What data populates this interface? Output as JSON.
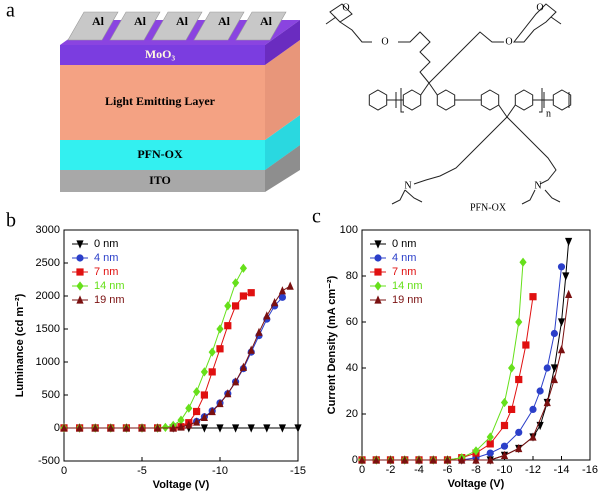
{
  "panel_labels": [
    "a",
    "b",
    "c"
  ],
  "device": {
    "electrodes": [
      "Al",
      "Al",
      "Al",
      "Al",
      "Al"
    ],
    "layers": [
      "MoO₃",
      "Light Emitting Layer",
      "PFN-OX",
      "ITO"
    ]
  },
  "structure": {
    "oxygen_labels": [
      "O",
      "O",
      "O",
      "O"
    ],
    "nitrogen_labels": [
      "N",
      "N"
    ],
    "repeat_label": "n",
    "name": "PFN-OX"
  },
  "chart_data": [
    {
      "type": "line",
      "xlabel": "Voltage (V)",
      "ylabel": "Luminance (cd m⁻²)",
      "xlim": [
        0,
        -15
      ],
      "xticks": [
        0,
        -5,
        -10,
        -15
      ],
      "ylim": [
        -500,
        3000
      ],
      "yticks": [
        -500,
        0,
        500,
        1000,
        1500,
        2000,
        2500,
        3000
      ],
      "legend": "upper left",
      "series": [
        {
          "name": "0 nm",
          "color": "#000000",
          "marker": "triangle-down",
          "x": [
            0,
            -1,
            -2,
            -3,
            -4,
            -5,
            -6,
            -7,
            -8,
            -9,
            -10,
            -11,
            -12,
            -13,
            -14,
            -15
          ],
          "values": [
            0,
            0,
            0,
            0,
            0,
            0,
            0,
            0,
            0,
            0,
            0,
            0,
            0,
            0,
            0,
            0
          ]
        },
        {
          "name": "4 nm",
          "color": "#2b3fc9",
          "marker": "circle",
          "x": [
            0,
            -1,
            -2,
            -3,
            -4,
            -5,
            -6,
            -7,
            -7.5,
            -8,
            -8.5,
            -9,
            -9.5,
            -10,
            -10.5,
            -11,
            -11.5,
            -12,
            -12.5,
            -13,
            -13.5,
            -14
          ],
          "values": [
            0,
            0,
            0,
            0,
            0,
            0,
            0,
            5,
            20,
            50,
            100,
            170,
            260,
            380,
            520,
            700,
            900,
            1150,
            1400,
            1650,
            1850,
            1980
          ]
        },
        {
          "name": "7 nm",
          "color": "#e01010",
          "marker": "square",
          "x": [
            0,
            -1,
            -2,
            -3,
            -4,
            -5,
            -6,
            -7,
            -7.5,
            -8,
            -8.5,
            -9,
            -9.5,
            -10,
            -10.5,
            -11,
            -11.5,
            -12
          ],
          "values": [
            0,
            0,
            0,
            0,
            0,
            0,
            0,
            0,
            20,
            80,
            250,
            500,
            850,
            1200,
            1550,
            1850,
            2000,
            2050
          ]
        },
        {
          "name": "14 nm",
          "color": "#66e01a",
          "marker": "diamond",
          "x": [
            0,
            -1,
            -2,
            -3,
            -4,
            -5,
            -6,
            -6.5,
            -7,
            -7.5,
            -8,
            -8.5,
            -9,
            -9.5,
            -10,
            -10.5,
            -11,
            -11.5
          ],
          "values": [
            0,
            0,
            0,
            0,
            0,
            0,
            0,
            10,
            40,
            120,
            300,
            550,
            850,
            1150,
            1500,
            1850,
            2200,
            2420
          ]
        },
        {
          "name": "19 nm",
          "color": "#7a1010",
          "marker": "triangle-up",
          "x": [
            0,
            -1,
            -2,
            -3,
            -4,
            -5,
            -6,
            -7,
            -7.5,
            -8,
            -8.5,
            -9,
            -9.5,
            -10,
            -10.5,
            -11,
            -11.5,
            -12,
            -12.5,
            -13,
            -13.5,
            -14,
            -14.5
          ],
          "values": [
            0,
            0,
            0,
            0,
            0,
            0,
            0,
            0,
            15,
            45,
            90,
            160,
            250,
            370,
            520,
            700,
            920,
            1180,
            1450,
            1700,
            1900,
            2080,
            2150
          ]
        }
      ]
    },
    {
      "type": "line",
      "xlabel": "Voltage (V)",
      "ylabel": "Current Density (mA cm⁻²)",
      "xlim": [
        0,
        -16
      ],
      "xticks": [
        0,
        -2,
        -4,
        -6,
        -8,
        -10,
        -12,
        -14,
        -16
      ],
      "ylim": [
        0,
        100
      ],
      "yticks": [
        0,
        20,
        40,
        60,
        80,
        100
      ],
      "legend": "upper left",
      "series": [
        {
          "name": "0 nm",
          "color": "#000000",
          "marker": "triangle-down",
          "x": [
            0,
            -1,
            -2,
            -3,
            -4,
            -5,
            -6,
            -7,
            -8,
            -9,
            -10,
            -11,
            -12,
            -12.5,
            -13,
            -13.5,
            -14,
            -14.3,
            -14.5
          ],
          "values": [
            0,
            0,
            0,
            0,
            0,
            0,
            0,
            0,
            0,
            0,
            2,
            5,
            10,
            15,
            25,
            40,
            60,
            80,
            95
          ]
        },
        {
          "name": "4 nm",
          "color": "#2b3fc9",
          "marker": "circle",
          "x": [
            0,
            -1,
            -2,
            -3,
            -4,
            -5,
            -6,
            -7,
            -8,
            -9,
            -10,
            -11,
            -12,
            -12.5,
            -13,
            -13.5,
            -14
          ],
          "values": [
            0,
            0,
            0,
            0,
            0,
            0,
            0,
            0,
            1,
            3,
            6,
            12,
            22,
            30,
            40,
            55,
            84
          ]
        },
        {
          "name": "7 nm",
          "color": "#e01010",
          "marker": "square",
          "x": [
            0,
            -1,
            -2,
            -3,
            -4,
            -5,
            -6,
            -7,
            -8,
            -9,
            -10,
            -10.5,
            -11,
            -11.5,
            -12
          ],
          "values": [
            0,
            0,
            0,
            0,
            0,
            0,
            0,
            1,
            3,
            7,
            15,
            22,
            35,
            50,
            71
          ]
        },
        {
          "name": "14 nm",
          "color": "#66e01a",
          "marker": "diamond",
          "x": [
            0,
            -1,
            -2,
            -3,
            -4,
            -5,
            -6,
            -7,
            -8,
            -9,
            -10,
            -10.5,
            -11,
            -11.3
          ],
          "values": [
            0,
            0,
            0,
            0,
            0,
            0,
            0,
            1,
            4,
            10,
            25,
            40,
            60,
            86
          ]
        },
        {
          "name": "19 nm",
          "color": "#7a1010",
          "marker": "triangle-up",
          "x": [
            0,
            -1,
            -2,
            -3,
            -4,
            -5,
            -6,
            -7,
            -8,
            -9,
            -10,
            -11,
            -12,
            -13,
            -13.5,
            -14,
            -14.5
          ],
          "values": [
            0,
            0,
            0,
            0,
            0,
            0,
            0,
            0,
            0,
            0,
            2,
            5,
            10,
            25,
            35,
            48,
            72
          ]
        }
      ]
    }
  ]
}
